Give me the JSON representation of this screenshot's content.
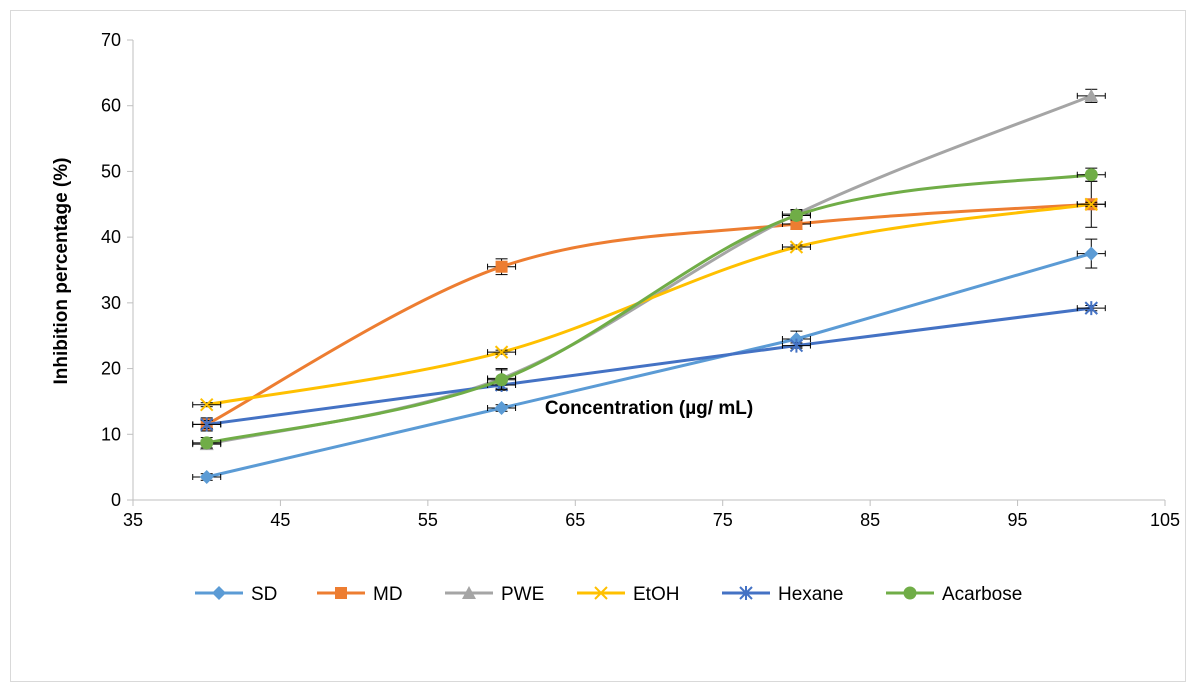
{
  "chart_data": {
    "type": "line",
    "xlabel": "Concentration (µg/ mL)",
    "ylabel": "Inhibition percentage (%)",
    "xlim": [
      35,
      105
    ],
    "ylim": [
      0,
      70
    ],
    "xticks": [
      35,
      45,
      55,
      65,
      75,
      85,
      95,
      105
    ],
    "yticks": [
      0,
      10,
      20,
      30,
      40,
      50,
      60,
      70
    ],
    "grid": false,
    "legend_position": "bottom",
    "x": [
      40,
      60,
      80,
      100
    ],
    "series": [
      {
        "name": "SD",
        "color": "#5B9BD5",
        "marker": "diamond",
        "values": [
          3.5,
          14.0,
          24.5,
          37.5
        ],
        "err_y": [
          0.5,
          0.5,
          1.2,
          2.2
        ],
        "smooth": false
      },
      {
        "name": "MD",
        "color": "#ED7D31",
        "marker": "square",
        "values": [
          11.5,
          35.5,
          42.0,
          45.0
        ],
        "err_y": [
          1.0,
          1.2,
          0.8,
          3.5
        ],
        "smooth": true
      },
      {
        "name": "PWE",
        "color": "#A5A5A5",
        "marker": "triangle",
        "values": [
          8.5,
          18.5,
          43.5,
          61.5
        ],
        "err_y": [
          0.6,
          1.5,
          0.7,
          1.0
        ],
        "smooth": true
      },
      {
        "name": "EtOH",
        "color": "#FFC000",
        "marker": "x",
        "values": [
          14.5,
          22.5,
          38.5,
          45.0
        ],
        "err_y": [
          0.3,
          0.3,
          0.3,
          0.3
        ],
        "smooth": true
      },
      {
        "name": "Hexane",
        "color": "#4472C4",
        "marker": "asterisk",
        "values": [
          11.5,
          17.5,
          23.5,
          29.2
        ],
        "err_y": [
          0.6,
          0.8,
          0.4,
          0.4
        ],
        "smooth": false
      },
      {
        "name": "Acarbose",
        "color": "#70AD47",
        "marker": "circle",
        "values": [
          8.7,
          18.3,
          43.3,
          49.5
        ],
        "err_y": [
          0.8,
          1.5,
          0.7,
          1.0
        ],
        "smooth": true
      }
    ]
  }
}
